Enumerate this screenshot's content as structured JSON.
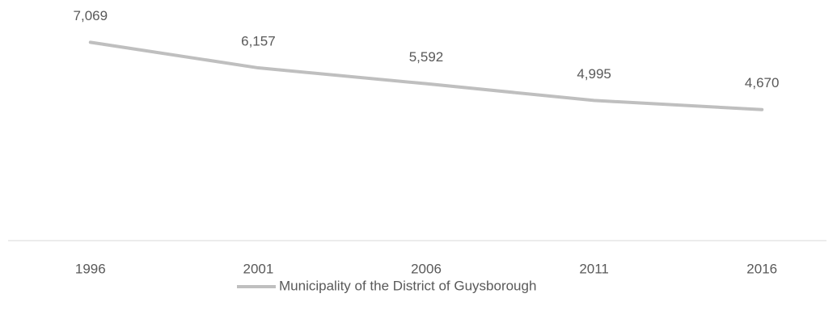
{
  "chart_data": {
    "type": "line",
    "categories": [
      "1996",
      "2001",
      "2006",
      "2011",
      "2016"
    ],
    "series": [
      {
        "name": "Municipality of the District of Guysborough",
        "color": "#bfbfbf",
        "values": [
          7069,
          6157,
          5592,
          4995,
          4670
        ],
        "value_labels": [
          "7,069",
          "6,157",
          "5,592",
          "4,995",
          "4,670"
        ]
      }
    ],
    "ylim": [
      0,
      8000
    ],
    "legend": "bottom"
  }
}
